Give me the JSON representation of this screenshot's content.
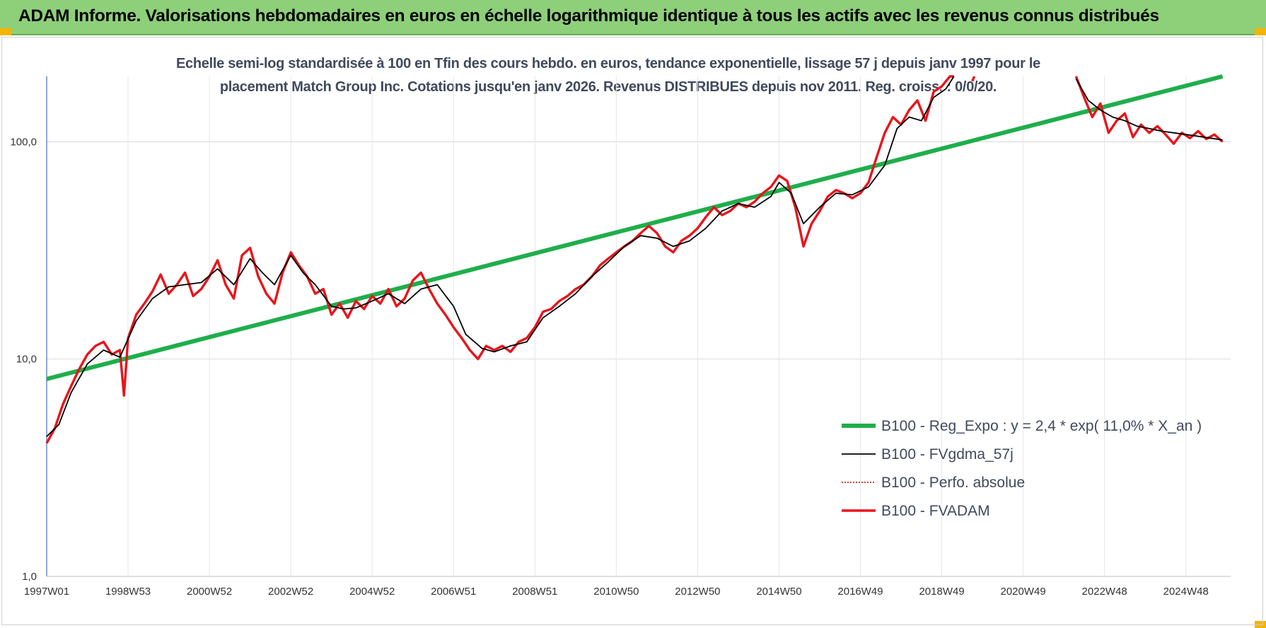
{
  "header": {
    "title": "ADAM Informe. Valorisations hebdomadaires en euros en échelle logarithmique identique à tous les actifs avec les revenus connus distribués"
  },
  "chart_data": {
    "type": "line",
    "title": "Echelle semi-log standardisée à 100 en Tfin des cours hebdo. en euros, tendance exponentielle, lissage 57 j depuis janv 1997 pour le placement Match Group Inc. Cotations jusqu'en janv 2026. Revenus DISTRIBUES depuis nov 2011. Reg. croiss. : 0/0/20.",
    "title_lines": [
      "Echelle semi-log standardisée à 100 en Tfin des cours hebdo. en euros, tendance exponentielle, lissage 57 j depuis janv 1997 pour le",
      "placement Match Group Inc. Cotations jusqu'en janv 2026. Revenus DISTRIBUES depuis nov 2011. Reg. croiss. : 0/0/20."
    ],
    "y_scale": "log",
    "ylim": [
      1,
      200
    ],
    "xlim": [
      1997.0,
      2026.1
    ],
    "y_ticks": [
      {
        "value": 1,
        "label": "1,0"
      },
      {
        "value": 10,
        "label": "10,0"
      },
      {
        "value": 100,
        "label": "100,0"
      }
    ],
    "x_ticks": [
      {
        "value": 1997.0,
        "label": "1997W01"
      },
      {
        "value": 1999.0,
        "label": "1998W53"
      },
      {
        "value": 2001.0,
        "label": "2000W52"
      },
      {
        "value": 2003.0,
        "label": "2002W52"
      },
      {
        "value": 2005.0,
        "label": "2004W52"
      },
      {
        "value": 2007.0,
        "label": "2006W51"
      },
      {
        "value": 2009.0,
        "label": "2008W51"
      },
      {
        "value": 2011.0,
        "label": "2010W50"
      },
      {
        "value": 2013.0,
        "label": "2012W50"
      },
      {
        "value": 2015.0,
        "label": "2014W50"
      },
      {
        "value": 2017.0,
        "label": "2016W49"
      },
      {
        "value": 2019.0,
        "label": "2018W49"
      },
      {
        "value": 2021.0,
        "label": "2020W49"
      },
      {
        "value": 2023.0,
        "label": "2022W48"
      },
      {
        "value": 2025.0,
        "label": "2024W48"
      }
    ],
    "grid": true,
    "legend_position": "bottom-right",
    "series": [
      {
        "name": "B100 - Reg_Expo : y = 2,4 * exp( 11,0% *  X_an )",
        "color": "#1fae4b",
        "style": "solid-thick",
        "x": [
          1997.0,
          2025.9
        ],
        "y": [
          8.1,
          200
        ]
      },
      {
        "name": "B100 - FVgdma_57j",
        "color": "#000000",
        "style": "solid-thin",
        "x": [
          1997.0,
          1997.3,
          1997.6,
          1998.0,
          1998.4,
          1998.8,
          1999.2,
          1999.6,
          2000.0,
          2000.4,
          2000.8,
          2001.2,
          2001.6,
          2002.0,
          2002.3,
          2002.6,
          2003.0,
          2003.3,
          2003.6,
          2004.0,
          2004.3,
          2004.6,
          2005.0,
          2005.4,
          2005.8,
          2006.2,
          2006.6,
          2007.0,
          2007.3,
          2007.7,
          2008.0,
          2008.4,
          2008.8,
          2009.2,
          2009.6,
          2010.0,
          2010.4,
          2010.8,
          2011.2,
          2011.6,
          2012.0,
          2012.4,
          2012.8,
          2013.2,
          2013.6,
          2014.0,
          2014.4,
          2014.8,
          2015.0,
          2015.3,
          2015.6,
          2016.0,
          2016.4,
          2016.8,
          2017.2,
          2017.6,
          2017.9,
          2018.2,
          2018.5,
          2018.8,
          2019.1,
          2019.3
        ],
        "y": [
          4.4,
          5.0,
          7.0,
          9.5,
          11.0,
          10.2,
          15.0,
          19.0,
          21.5,
          22.0,
          22.5,
          26.0,
          22.0,
          29.0,
          25.0,
          22.0,
          30.0,
          25.0,
          22.0,
          17.5,
          17.0,
          17.2,
          18.5,
          20.0,
          18.0,
          21.0,
          22.0,
          17.5,
          13.0,
          11.2,
          10.8,
          11.5,
          12.0,
          15.5,
          17.5,
          20.0,
          24.0,
          28.0,
          33.0,
          37.0,
          36.0,
          33.0,
          35.0,
          40.0,
          48.0,
          52.0,
          50.0,
          56.0,
          65.0,
          58.0,
          42.0,
          50.0,
          58.0,
          57.0,
          62.0,
          78.0,
          115.0,
          130.0,
          125.0,
          160.0,
          175.0,
          200.0
        ]
      },
      {
        "name": "B100 - Perfo. absolue",
        "color": "#c00000",
        "style": "dotted",
        "x": [],
        "y": []
      },
      {
        "name": "B100 - FVADAM",
        "color": "#e8141b",
        "style": "solid-thick",
        "x": [
          1997.0,
          1997.2,
          1997.4,
          1997.6,
          1997.8,
          1998.0,
          1998.2,
          1998.4,
          1998.6,
          1998.8,
          1998.9,
          1999.0,
          1999.2,
          1999.4,
          1999.6,
          1999.8,
          2000.0,
          2000.2,
          2000.4,
          2000.6,
          2000.8,
          2001.0,
          2001.2,
          2001.4,
          2001.6,
          2001.8,
          2002.0,
          2002.2,
          2002.4,
          2002.6,
          2002.8,
          2003.0,
          2003.2,
          2003.4,
          2003.6,
          2003.8,
          2004.0,
          2004.2,
          2004.4,
          2004.6,
          2004.8,
          2005.0,
          2005.2,
          2005.4,
          2005.6,
          2005.8,
          2006.0,
          2006.2,
          2006.4,
          2006.6,
          2006.8,
          2007.0,
          2007.2,
          2007.4,
          2007.6,
          2007.8,
          2008.0,
          2008.2,
          2008.4,
          2008.6,
          2008.8,
          2009.0,
          2009.2,
          2009.4,
          2009.6,
          2009.8,
          2010.0,
          2010.2,
          2010.4,
          2010.6,
          2010.8,
          2011.0,
          2011.2,
          2011.4,
          2011.6,
          2011.8,
          2012.0,
          2012.2,
          2012.4,
          2012.6,
          2012.8,
          2013.0,
          2013.2,
          2013.4,
          2013.6,
          2013.8,
          2014.0,
          2014.2,
          2014.4,
          2014.6,
          2014.8,
          2015.0,
          2015.2,
          2015.4,
          2015.6,
          2015.8,
          2016.0,
          2016.2,
          2016.4,
          2016.6,
          2016.8,
          2017.0,
          2017.2,
          2017.4,
          2017.6,
          2017.8,
          2018.0,
          2018.2,
          2018.4,
          2018.6,
          2018.8,
          2019.0,
          2019.2,
          2019.3
        ],
        "y": [
          4.1,
          4.8,
          6.2,
          7.5,
          9.0,
          10.5,
          11.5,
          12.0,
          10.5,
          11.0,
          6.8,
          12.5,
          16.0,
          18.0,
          20.5,
          24.5,
          20.0,
          22.0,
          25.0,
          19.5,
          21.0,
          24.0,
          28.5,
          22.0,
          19.0,
          30.0,
          32.5,
          24.0,
          20.0,
          18.0,
          25.0,
          31.0,
          27.0,
          24.0,
          20.0,
          21.0,
          16.0,
          18.0,
          15.5,
          18.5,
          17.0,
          19.5,
          18.0,
          21.0,
          17.5,
          19.0,
          23.0,
          25.0,
          21.0,
          18.0,
          16.0,
          14.0,
          12.5,
          11.0,
          10.0,
          11.5,
          11.0,
          11.5,
          10.8,
          12.0,
          12.5,
          14.0,
          16.5,
          17.0,
          18.5,
          19.5,
          21.0,
          22.0,
          24.0,
          27.0,
          29.0,
          31.0,
          33.0,
          35.0,
          38.0,
          41.0,
          38.0,
          33.0,
          31.0,
          35.0,
          37.0,
          40.0,
          45.0,
          50.0,
          46.0,
          48.0,
          52.0,
          50.0,
          53.0,
          58.0,
          62.0,
          70.0,
          66.0,
          50.0,
          33.0,
          42.0,
          48.0,
          56.0,
          60.0,
          58.0,
          55.0,
          58.0,
          65.0,
          85.0,
          110.0,
          130.0,
          120.0,
          140.0,
          155.0,
          125.0,
          170.0,
          180.0,
          200.0,
          200.0
        ]
      }
    ],
    "extra_segments": [
      {
        "series": "B100 - FVgdma_57j",
        "x": [
          2022.3,
          2022.6,
          2022.9,
          2023.2,
          2023.5,
          2023.8,
          2024.1,
          2024.4,
          2024.7,
          2025.0,
          2025.3,
          2025.6,
          2025.9
        ],
        "y": [
          195.0,
          155.0,
          140.0,
          130.0,
          125.0,
          118.0,
          115.0,
          112.0,
          110.0,
          108.0,
          106.0,
          104.0,
          102.0
        ]
      },
      {
        "series": "B100 - FVADAM",
        "x": [
          2022.3,
          2022.5,
          2022.7,
          2022.9,
          2023.1,
          2023.3,
          2023.5,
          2023.7,
          2023.9,
          2024.1,
          2024.3,
          2024.5,
          2024.7,
          2024.9,
          2025.1,
          2025.3,
          2025.5,
          2025.7,
          2025.9
        ],
        "y": [
          200.0,
          160.0,
          130.0,
          150.0,
          110.0,
          125.0,
          135.0,
          105.0,
          120.0,
          110.0,
          118.0,
          108.0,
          98.0,
          110.0,
          104.0,
          112.0,
          103.0,
          108.0,
          100.0
        ]
      },
      {
        "series": "B100 - FVADAM",
        "x": [
          2019.75,
          2019.8
        ],
        "y": [
          190.0,
          200.0
        ]
      }
    ]
  }
}
